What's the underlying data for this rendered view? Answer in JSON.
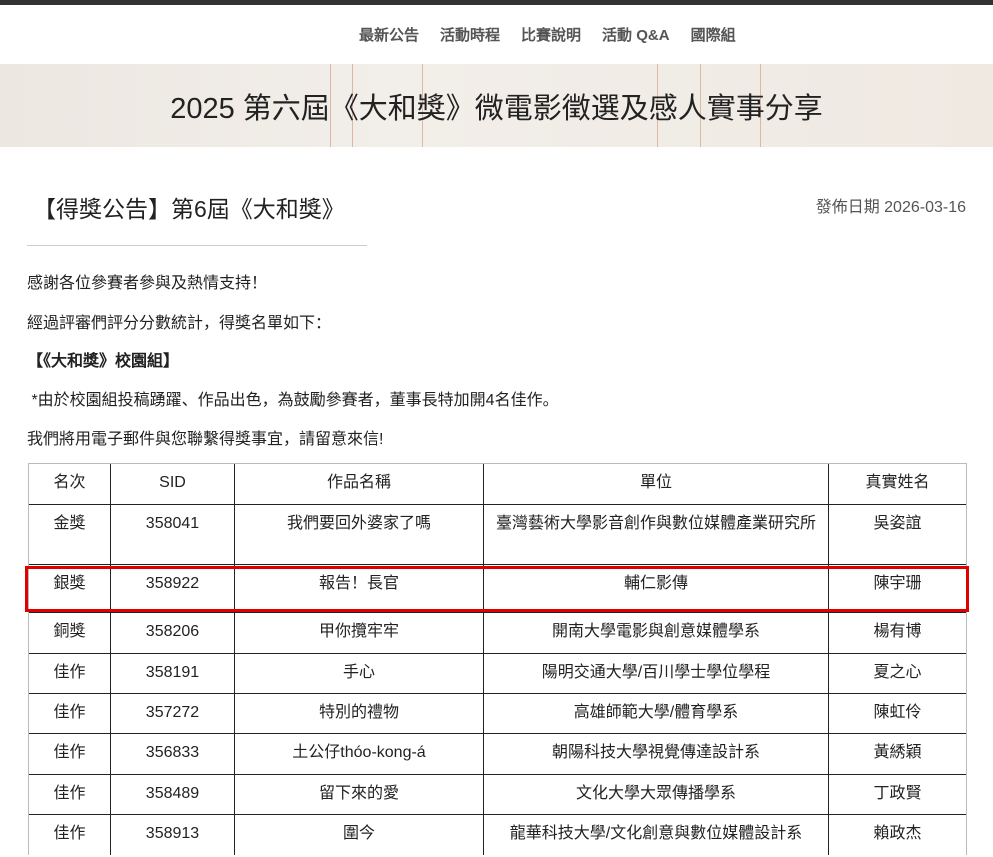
{
  "nav": [
    "最新公告",
    "活動時程",
    "比賽說明",
    "活動 Q&A",
    "國際組"
  ],
  "banner": {
    "title": "2025 第六屆《大和獎》微電影徵選及感人實事分享"
  },
  "post": {
    "title": "【得獎公告】第6屆《大和獎》",
    "date": "發佈日期 2026-03-16",
    "paragraphs": [
      "感謝各位參賽者參與及熱情支持！",
      "經過評審們評分分數統計，得獎名單如下：",
      "【《大和獎》校園組】",
      " *由於校園組投稿踴躍、作品出色，為鼓勵參賽者，董事長特加開4名佳作。",
      "我們將用電子郵件與您聯繫得獎事宜，請留意來信!"
    ]
  },
  "table": {
    "headers": [
      "名次",
      "SID",
      "作品名稱",
      "單位",
      "真實姓名"
    ],
    "rows": [
      [
        "金獎",
        "358041",
        "我們要回外婆家了嗎",
        "臺灣藝術大學影音創作與數位媒體產業研究所",
        "吳姿誼"
      ],
      [
        "銀獎",
        "358922",
        "報告！長官",
        "輔仁影傳",
        "陳宇珊"
      ],
      [
        "銅獎",
        "358206",
        "甲你攬牢牢",
        "開南大學電影與創意媒體學系",
        "楊有博"
      ],
      [
        "佳作",
        "358191",
        "手心",
        "陽明交通大學/百川學士學位學程",
        "夏之心"
      ],
      [
        "佳作",
        "357272",
        "特別的禮物",
        "高雄師範大學/體育學系",
        "陳虹伶"
      ],
      [
        "佳作",
        "356833",
        "土公仔thóo-kong-á",
        "朝陽科技大學視覺傳達設計系",
        "黃綉穎"
      ],
      [
        "佳作",
        "358489",
        "留下來的愛",
        "文化大學大眾傳播學系",
        "丁政賢"
      ],
      [
        "佳作",
        "358913",
        "圍今",
        "龍華科技大學/文化創意與數位媒體設計系",
        "賴政杰"
      ]
    ]
  },
  "highlight": {
    "row": "銀獎",
    "color": "#e00000"
  }
}
